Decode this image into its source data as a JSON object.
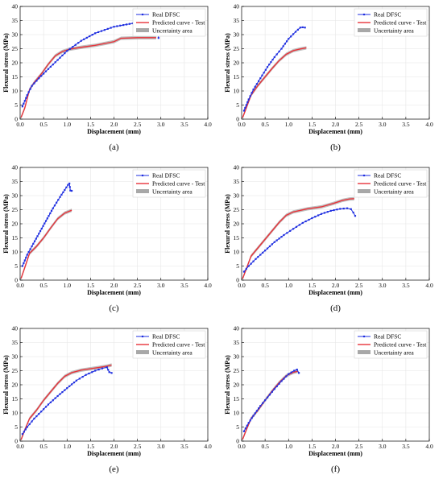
{
  "colors": {
    "real": "#1f2fe0",
    "predicted": "#e8333a",
    "uncertainty": "#a8a8a8",
    "grid": "#e6e6e6",
    "axis": "#000000"
  },
  "chart_data": [
    {
      "panel": "(a)",
      "type": "line",
      "xlabel": "Displacement (mm)",
      "ylabel": "Flexural stress (MPa)",
      "xlim": [
        0,
        4.0
      ],
      "ylim": [
        0,
        40
      ],
      "xticks": [
        "0.0",
        "0.5",
        "1.0",
        "1.5",
        "2.0",
        "2.5",
        "3.0",
        "3.5",
        "4.0"
      ],
      "yticks": [
        "0",
        "5",
        "10",
        "15",
        "20",
        "25",
        "30",
        "35",
        "40"
      ],
      "grid": true,
      "legend_position": "top-right",
      "legend": [
        "Real DFSC",
        "Predicted curve - Test",
        "Uncertainty area"
      ],
      "series": [
        {
          "name": "Real DFSC",
          "x": [
            0.05,
            0.15,
            0.25,
            0.4,
            0.6,
            0.8,
            1.0,
            1.3,
            1.6,
            2.0,
            2.4,
            2.7,
            2.93,
            2.95
          ],
          "y": [
            4.5,
            8.5,
            11.8,
            14.5,
            17.8,
            21.0,
            24.2,
            27.8,
            30.5,
            32.8,
            34.0,
            34.4,
            34.5,
            28.8
          ]
        },
        {
          "name": "Predicted curve - Test",
          "x": [
            0.02,
            0.1,
            0.2,
            0.3,
            0.45,
            0.6,
            0.75,
            0.9,
            1.05,
            1.3,
            1.6,
            1.85,
            2.0,
            2.15,
            2.5,
            2.9
          ],
          "y": [
            0.6,
            4.0,
            10.5,
            13.0,
            16.0,
            19.5,
            22.5,
            24.0,
            24.8,
            25.5,
            26.2,
            27.0,
            27.5,
            28.7,
            28.9,
            28.9
          ]
        }
      ]
    },
    {
      "panel": "(b)",
      "type": "line",
      "xlabel": "Displacement (mm)",
      "ylabel": "Flexural stress (MPa)",
      "xlim": [
        0,
        4.0
      ],
      "ylim": [
        0,
        40
      ],
      "xticks": [
        "0.0",
        "0.5",
        "1.0",
        "1.5",
        "2.0",
        "2.5",
        "3.0",
        "3.5",
        "4.0"
      ],
      "yticks": [
        "0",
        "5",
        "10",
        "15",
        "20",
        "25",
        "30",
        "35",
        "40"
      ],
      "grid": true,
      "legend_position": "top-right",
      "legend": [
        "Real DFSC",
        "Predicted curve - Test",
        "Uncertainty area"
      ],
      "series": [
        {
          "name": "Real DFSC",
          "x": [
            0.05,
            0.15,
            0.25,
            0.4,
            0.55,
            0.7,
            0.85,
            1.0,
            1.15,
            1.25,
            1.3,
            1.35
          ],
          "y": [
            3.0,
            7.0,
            10.5,
            14.5,
            18.5,
            22.0,
            25.0,
            28.5,
            31.0,
            32.5,
            32.6,
            32.5
          ]
        },
        {
          "name": "Predicted curve - Test",
          "x": [
            0.02,
            0.1,
            0.2,
            0.35,
            0.5,
            0.65,
            0.8,
            0.95,
            1.1,
            1.25,
            1.38
          ],
          "y": [
            0.5,
            4.0,
            8.5,
            12.0,
            15.0,
            18.0,
            20.8,
            23.0,
            24.3,
            24.9,
            25.3
          ]
        }
      ]
    },
    {
      "panel": "(c)",
      "type": "line",
      "xlabel": "Displacement (mm)",
      "ylabel": "Flexural stress (MPa)",
      "xlim": [
        0,
        4.0
      ],
      "ylim": [
        0,
        40
      ],
      "xticks": [
        "0.0",
        "0.5",
        "1.0",
        "1.5",
        "2.0",
        "2.5",
        "3.0",
        "3.5",
        "4.0"
      ],
      "yticks": [
        "0",
        "5",
        "10",
        "15",
        "20",
        "25",
        "30",
        "35",
        "40"
      ],
      "grid": true,
      "legend_position": "top-right",
      "legend": [
        "Real DFSC",
        "Predicted curve - Test",
        "Uncertainty area"
      ],
      "series": [
        {
          "name": "Real DFSC",
          "x": [
            0.05,
            0.15,
            0.25,
            0.4,
            0.55,
            0.7,
            0.85,
            0.95,
            1.02,
            1.05,
            1.07,
            1.1
          ],
          "y": [
            5.0,
            9.0,
            12.0,
            16.5,
            21.0,
            25.5,
            29.5,
            32.0,
            33.8,
            34.3,
            31.8,
            31.7
          ]
        },
        {
          "name": "Predicted curve - Test",
          "x": [
            0.02,
            0.1,
            0.2,
            0.35,
            0.5,
            0.65,
            0.8,
            0.95,
            1.1
          ],
          "y": [
            0.6,
            4.5,
            9.5,
            12.0,
            15.0,
            18.5,
            21.8,
            23.8,
            24.8
          ]
        }
      ]
    },
    {
      "panel": "(d)",
      "type": "line",
      "xlabel": "Displacement (mm)",
      "ylabel": "Flexural stress (MPa)",
      "xlim": [
        0,
        4.0
      ],
      "ylim": [
        0,
        40
      ],
      "xticks": [
        "0.0",
        "0.5",
        "1.0",
        "1.5",
        "2.0",
        "2.5",
        "3.0",
        "3.5",
        "4.0"
      ],
      "yticks": [
        "0",
        "5",
        "10",
        "15",
        "20",
        "25",
        "30",
        "35",
        "40"
      ],
      "grid": true,
      "legend_position": "top-right",
      "legend": [
        "Real DFSC",
        "Predicted curve - Test",
        "Uncertainty area"
      ],
      "series": [
        {
          "name": "Real DFSC",
          "x": [
            0.05,
            0.15,
            0.3,
            0.5,
            0.7,
            0.9,
            1.1,
            1.3,
            1.5,
            1.7,
            1.9,
            2.1,
            2.25,
            2.33,
            2.38,
            2.42
          ],
          "y": [
            3.0,
            5.0,
            7.5,
            10.5,
            13.5,
            16.0,
            18.2,
            20.3,
            22.0,
            23.5,
            24.6,
            25.3,
            25.5,
            25.2,
            24.0,
            22.8
          ]
        },
        {
          "name": "Predicted curve - Test",
          "x": [
            0.02,
            0.1,
            0.2,
            0.35,
            0.5,
            0.65,
            0.8,
            0.95,
            1.1,
            1.4,
            1.7,
            1.95,
            2.15,
            2.3,
            2.4
          ],
          "y": [
            0.5,
            4.0,
            8.5,
            11.5,
            14.5,
            17.5,
            20.5,
            23.0,
            24.2,
            25.3,
            26.0,
            27.2,
            28.3,
            28.8,
            28.9
          ]
        }
      ]
    },
    {
      "panel": "(e)",
      "type": "line",
      "xlabel": "Displacement (mm)",
      "ylabel": "Flexural stress (MPa)",
      "xlim": [
        0,
        4.0
      ],
      "ylim": [
        0,
        40
      ],
      "xticks": [
        "0.0",
        "0.5",
        "1.0",
        "1.5",
        "2.0",
        "2.5",
        "3.0",
        "3.5",
        "4.0"
      ],
      "yticks": [
        "0",
        "5",
        "10",
        "15",
        "20",
        "25",
        "30",
        "35",
        "40"
      ],
      "grid": true,
      "legend_position": "top-right",
      "legend": [
        "Real DFSC",
        "Predicted curve - Test",
        "Uncertainty area"
      ],
      "series": [
        {
          "name": "Real DFSC",
          "x": [
            0.05,
            0.15,
            0.3,
            0.45,
            0.6,
            0.8,
            1.0,
            1.2,
            1.4,
            1.6,
            1.75,
            1.85,
            1.9,
            1.95
          ],
          "y": [
            2.5,
            5.0,
            8.0,
            10.5,
            13.0,
            16.0,
            18.8,
            21.5,
            23.5,
            25.0,
            25.8,
            26.2,
            24.5,
            24.2
          ]
        },
        {
          "name": "Predicted curve - Test",
          "x": [
            0.02,
            0.1,
            0.2,
            0.35,
            0.5,
            0.65,
            0.8,
            0.95,
            1.1,
            1.3,
            1.5,
            1.7,
            1.85,
            1.95
          ],
          "y": [
            0.5,
            4.0,
            8.0,
            11.0,
            14.5,
            17.5,
            20.5,
            23.0,
            24.3,
            25.2,
            25.7,
            26.2,
            26.6,
            27.0
          ]
        }
      ]
    },
    {
      "panel": "(f)",
      "type": "line",
      "xlabel": "Displacement (mm)",
      "ylabel": "Flexural stress (MPa)",
      "xlim": [
        0,
        4.0
      ],
      "ylim": [
        0,
        40
      ],
      "xticks": [
        "0.0",
        "0.5",
        "1.0",
        "1.5",
        "2.0",
        "2.5",
        "3.0",
        "3.5",
        "4.0"
      ],
      "yticks": [
        "0",
        "5",
        "10",
        "15",
        "20",
        "25",
        "30",
        "35",
        "40"
      ],
      "grid": true,
      "legend_position": "top-right",
      "legend": [
        "Real DFSC",
        "Predicted curve - Test",
        "Uncertainty area"
      ],
      "series": [
        {
          "name": "Real DFSC",
          "x": [
            0.05,
            0.15,
            0.25,
            0.4,
            0.55,
            0.7,
            0.85,
            1.0,
            1.12,
            1.18,
            1.22
          ],
          "y": [
            3.5,
            6.5,
            9.0,
            12.5,
            15.5,
            18.5,
            21.3,
            23.8,
            25.0,
            25.4,
            24.2
          ]
        },
        {
          "name": "Predicted curve - Test",
          "x": [
            0.02,
            0.1,
            0.2,
            0.35,
            0.5,
            0.65,
            0.8,
            0.95,
            1.1,
            1.2
          ],
          "y": [
            0.6,
            4.0,
            8.0,
            11.0,
            14.5,
            17.8,
            20.8,
            23.2,
            24.4,
            24.8
          ]
        }
      ]
    }
  ]
}
